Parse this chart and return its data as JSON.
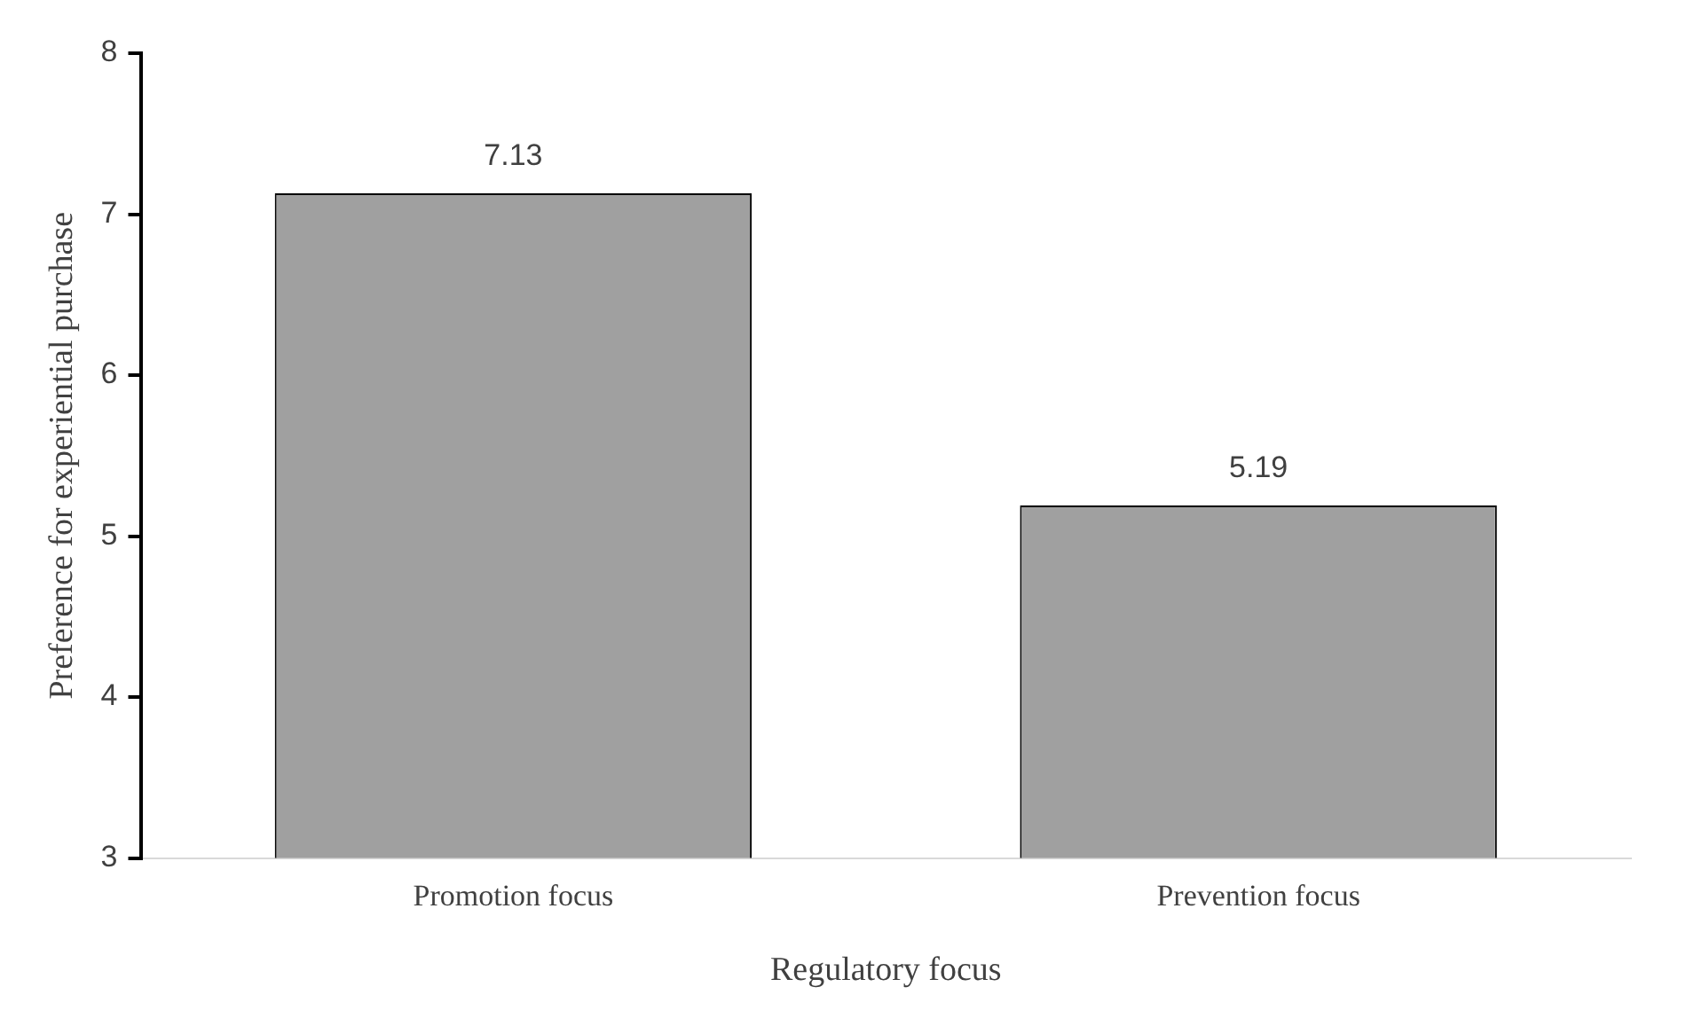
{
  "chart_data": {
    "type": "bar",
    "xlabel": "Regulatory focus",
    "ylabel": "Preference for experiential purchase",
    "categories": [
      "Promotion focus",
      "Prevention focus"
    ],
    "values": [
      7.13,
      5.19
    ],
    "color": "#a0a0a0",
    "ylim": [
      3,
      8
    ],
    "yticks": [
      3,
      4,
      5,
      6,
      7,
      8
    ],
    "grid": false,
    "data_labels": true
  }
}
